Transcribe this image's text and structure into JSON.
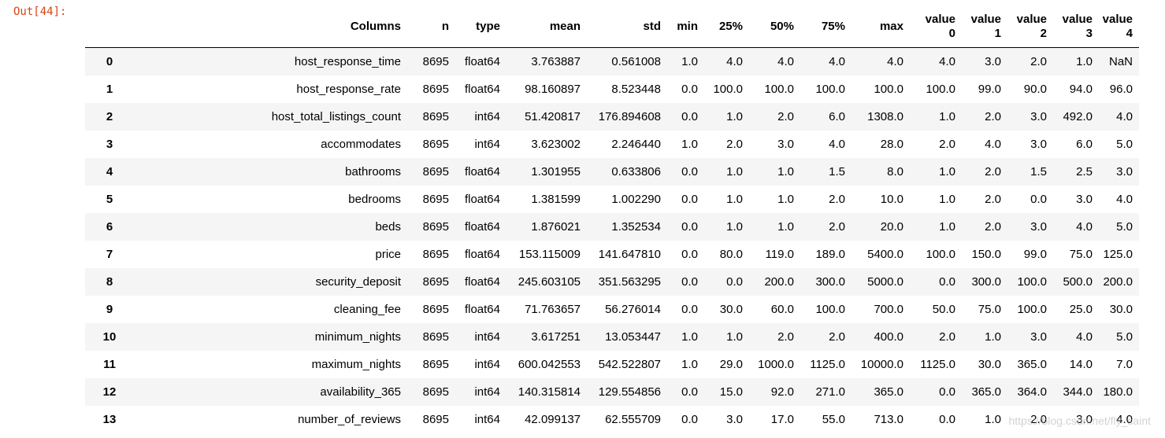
{
  "prompt": "Out[44]:",
  "columns": [
    "",
    "Columns",
    "n",
    "type",
    "mean",
    "std",
    "min",
    "25%",
    "50%",
    "75%",
    "max",
    "value 0",
    "value 1",
    "value 2",
    "value 3",
    "value 4"
  ],
  "header_lines": [
    [
      "",
      ""
    ],
    [
      "Columns",
      ""
    ],
    [
      "n",
      ""
    ],
    [
      "type",
      ""
    ],
    [
      "mean",
      ""
    ],
    [
      "std",
      ""
    ],
    [
      "min",
      ""
    ],
    [
      "25%",
      ""
    ],
    [
      "50%",
      ""
    ],
    [
      "75%",
      ""
    ],
    [
      "max",
      ""
    ],
    [
      "value",
      "0"
    ],
    [
      "value",
      "1"
    ],
    [
      "value",
      "2"
    ],
    [
      "value",
      "3"
    ],
    [
      "value",
      "4"
    ]
  ],
  "rows": [
    [
      "0",
      "host_response_time",
      "8695",
      "float64",
      "3.763887",
      "0.561008",
      "1.0",
      "4.0",
      "4.0",
      "4.0",
      "4.0",
      "4.0",
      "3.0",
      "2.0",
      "1.0",
      "NaN"
    ],
    [
      "1",
      "host_response_rate",
      "8695",
      "float64",
      "98.160897",
      "8.523448",
      "0.0",
      "100.0",
      "100.0",
      "100.0",
      "100.0",
      "100.0",
      "99.0",
      "90.0",
      "94.0",
      "96.0"
    ],
    [
      "2",
      "host_total_listings_count",
      "8695",
      "int64",
      "51.420817",
      "176.894608",
      "0.0",
      "1.0",
      "2.0",
      "6.0",
      "1308.0",
      "1.0",
      "2.0",
      "3.0",
      "492.0",
      "4.0"
    ],
    [
      "3",
      "accommodates",
      "8695",
      "int64",
      "3.623002",
      "2.246440",
      "1.0",
      "2.0",
      "3.0",
      "4.0",
      "28.0",
      "2.0",
      "4.0",
      "3.0",
      "6.0",
      "5.0"
    ],
    [
      "4",
      "bathrooms",
      "8695",
      "float64",
      "1.301955",
      "0.633806",
      "0.0",
      "1.0",
      "1.0",
      "1.5",
      "8.0",
      "1.0",
      "2.0",
      "1.5",
      "2.5",
      "3.0"
    ],
    [
      "5",
      "bedrooms",
      "8695",
      "float64",
      "1.381599",
      "1.002290",
      "0.0",
      "1.0",
      "1.0",
      "2.0",
      "10.0",
      "1.0",
      "2.0",
      "0.0",
      "3.0",
      "4.0"
    ],
    [
      "6",
      "beds",
      "8695",
      "float64",
      "1.876021",
      "1.352534",
      "0.0",
      "1.0",
      "1.0",
      "2.0",
      "20.0",
      "1.0",
      "2.0",
      "3.0",
      "4.0",
      "5.0"
    ],
    [
      "7",
      "price",
      "8695",
      "float64",
      "153.115009",
      "141.647810",
      "0.0",
      "80.0",
      "119.0",
      "189.0",
      "5400.0",
      "100.0",
      "150.0",
      "99.0",
      "75.0",
      "125.0"
    ],
    [
      "8",
      "security_deposit",
      "8695",
      "float64",
      "245.603105",
      "351.563295",
      "0.0",
      "0.0",
      "200.0",
      "300.0",
      "5000.0",
      "0.0",
      "300.0",
      "100.0",
      "500.0",
      "200.0"
    ],
    [
      "9",
      "cleaning_fee",
      "8695",
      "float64",
      "71.763657",
      "56.276014",
      "0.0",
      "30.0",
      "60.0",
      "100.0",
      "700.0",
      "50.0",
      "75.0",
      "100.0",
      "25.0",
      "30.0"
    ],
    [
      "10",
      "minimum_nights",
      "8695",
      "int64",
      "3.617251",
      "13.053447",
      "1.0",
      "1.0",
      "2.0",
      "2.0",
      "400.0",
      "2.0",
      "1.0",
      "3.0",
      "4.0",
      "5.0"
    ],
    [
      "11",
      "maximum_nights",
      "8695",
      "int64",
      "600.042553",
      "542.522807",
      "1.0",
      "29.0",
      "1000.0",
      "1125.0",
      "10000.0",
      "1125.0",
      "30.0",
      "365.0",
      "14.0",
      "7.0"
    ],
    [
      "12",
      "availability_365",
      "8695",
      "int64",
      "140.315814",
      "129.554856",
      "0.0",
      "15.0",
      "92.0",
      "271.0",
      "365.0",
      "0.0",
      "365.0",
      "364.0",
      "344.0",
      "180.0"
    ],
    [
      "13",
      "number_of_reviews",
      "8695",
      "int64",
      "42.099137",
      "62.555709",
      "0.0",
      "3.0",
      "17.0",
      "55.0",
      "713.0",
      "0.0",
      "1.0",
      "2.0",
      "3.0",
      "4.0"
    ]
  ],
  "watermark": "https://blog.csdn.net/fly_saint"
}
